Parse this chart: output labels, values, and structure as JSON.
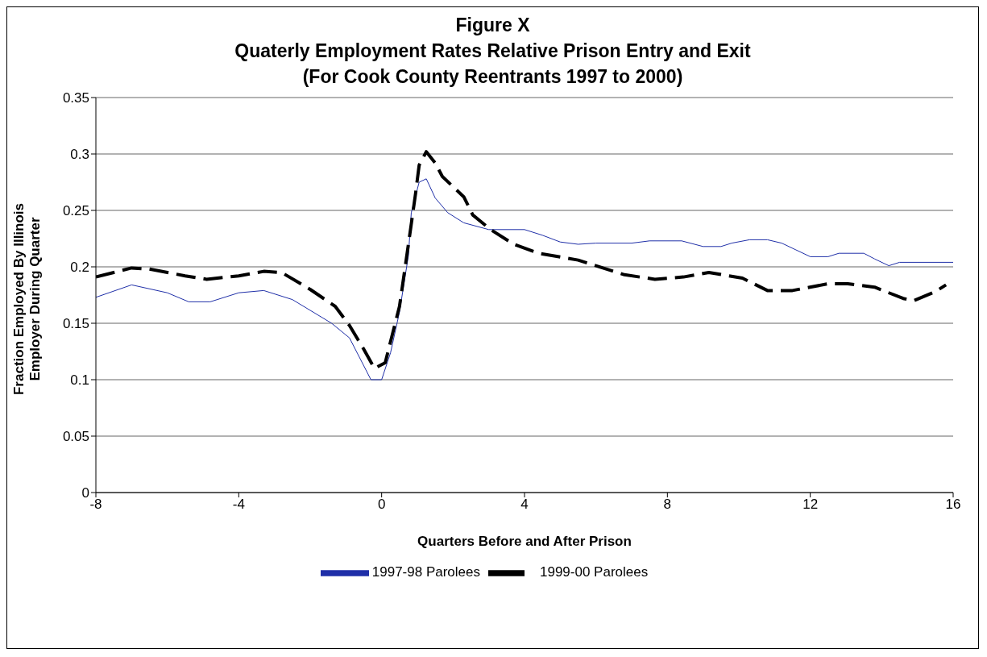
{
  "chart_data": {
    "type": "line",
    "title": "Figure X\nQuaterly Employment Rates Relative Prison Entry and Exit\n(For Cook County Reentrants 1997 to 2000)",
    "xlabel": "Quarters Before and After Prison",
    "ylabel": "Fraction Employed By Illinois\nEmployer During Quarter",
    "xlim": [
      -8,
      16
    ],
    "xticks": [
      -8,
      -4,
      0,
      4,
      8,
      12,
      16
    ],
    "ylim": [
      0,
      0.35
    ],
    "yticks": [
      0,
      0.05,
      0.1,
      0.15,
      0.2,
      0.25,
      0.3,
      0.35
    ],
    "grid": "y",
    "legend": "bottom",
    "marker": "none",
    "series": [
      {
        "name": "1997-98 Parolees",
        "color": "#1f2fa8",
        "line_style": "solid",
        "x": [
          -8,
          -7,
          -6,
          -5.4,
          -4.8,
          -4,
          -3.3,
          -2.5,
          -1.4,
          -0.9,
          -0.3,
          0,
          0.25,
          0.5,
          0.75,
          0.83,
          1.05,
          1.25,
          1.5,
          1.85,
          2.3,
          3,
          4,
          4.5,
          5,
          5.5,
          6,
          7,
          7.5,
          8.4,
          9,
          9.5,
          9.8,
          10.3,
          10.8,
          11.2,
          11.6,
          12,
          12.5,
          12.8,
          13.5,
          13.8,
          14.2,
          14.5,
          16
        ],
        "values": [
          0.173,
          0.184,
          0.177,
          0.169,
          0.169,
          0.177,
          0.179,
          0.171,
          0.15,
          0.137,
          0.1,
          0.1,
          0.124,
          0.16,
          0.21,
          0.248,
          0.275,
          0.278,
          0.261,
          0.248,
          0.239,
          0.233,
          0.233,
          0.228,
          0.222,
          0.22,
          0.221,
          0.221,
          0.223,
          0.223,
          0.218,
          0.218,
          0.221,
          0.224,
          0.224,
          0.221,
          0.215,
          0.209,
          0.209,
          0.212,
          0.212,
          0.207,
          0.201,
          0.204,
          0.204
        ]
      },
      {
        "name": "1999-00 Parolees",
        "color": "#000000",
        "line_style": "dashed",
        "x": [
          -8,
          -7,
          -6.5,
          -5.5,
          -4.9,
          -4,
          -3.3,
          -2.8,
          -2,
          -1.3,
          -0.9,
          -0.5,
          -0.2,
          0.1,
          0.3,
          0.5,
          0.75,
          0.95,
          1.05,
          1.25,
          1.5,
          1.7,
          2.3,
          2.55,
          3.05,
          3.7,
          4.4,
          5.5,
          6.8,
          7.65,
          8.45,
          9.16,
          10.1,
          10.8,
          11.5,
          12.5,
          13.05,
          13.8,
          14.6,
          14.9,
          15.5,
          15.8
        ],
        "values": [
          0.191,
          0.199,
          0.198,
          0.192,
          0.189,
          0.192,
          0.196,
          0.195,
          0.18,
          0.165,
          0.148,
          0.127,
          0.11,
          0.115,
          0.14,
          0.165,
          0.22,
          0.265,
          0.29,
          0.302,
          0.292,
          0.28,
          0.262,
          0.246,
          0.233,
          0.22,
          0.212,
          0.206,
          0.193,
          0.189,
          0.191,
          0.195,
          0.19,
          0.179,
          0.179,
          0.185,
          0.185,
          0.182,
          0.172,
          0.17,
          0.178,
          0.184
        ]
      }
    ]
  }
}
